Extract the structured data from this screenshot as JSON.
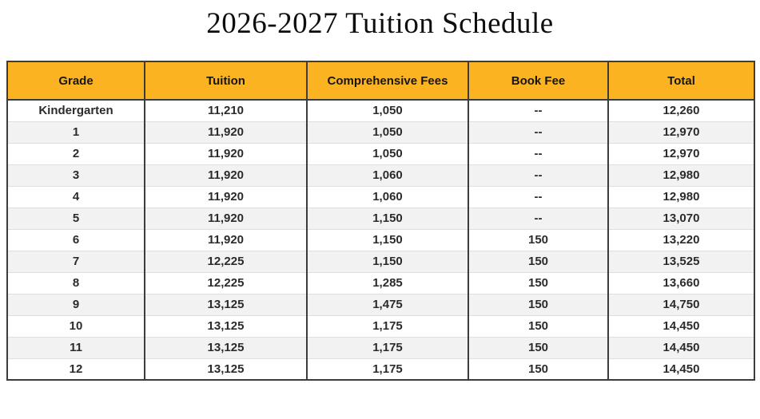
{
  "page": {
    "title": "2026-2027 Tuition Schedule"
  },
  "table": {
    "columns": [
      "Grade",
      "Tuition",
      "Comprehensive Fees",
      "Book Fee",
      "Total"
    ],
    "rows": [
      [
        "Kindergarten",
        "11,210",
        "1,050",
        "--",
        "12,260"
      ],
      [
        "1",
        "11,920",
        "1,050",
        "--",
        "12,970"
      ],
      [
        "2",
        "11,920",
        "1,050",
        "--",
        "12,970"
      ],
      [
        "3",
        "11,920",
        "1,060",
        "--",
        "12,980"
      ],
      [
        "4",
        "11,920",
        "1,060",
        "--",
        "12,980"
      ],
      [
        "5",
        "11,920",
        "1,150",
        "--",
        "13,070"
      ],
      [
        "6",
        "11,920",
        "1,150",
        "150",
        "13,220"
      ],
      [
        "7",
        "12,225",
        "1,150",
        "150",
        "13,525"
      ],
      [
        "8",
        "12,225",
        "1,285",
        "150",
        "13,660"
      ],
      [
        "9",
        "13,125",
        "1,475",
        "150",
        "14,750"
      ],
      [
        "10",
        "13,125",
        "1,175",
        "150",
        "14,450"
      ],
      [
        "11",
        "13,125",
        "1,175",
        "150",
        "14,450"
      ],
      [
        "12",
        "13,125",
        "1,175",
        "150",
        "14,450"
      ]
    ]
  },
  "colors": {
    "header_bg": "#FBB321",
    "stripe_bg": "#F2F2F2",
    "frame_border": "#3C3C3C",
    "row_line": "#DEDEDE",
    "body_text": "#2B2B2B",
    "header_text": "#161616"
  }
}
